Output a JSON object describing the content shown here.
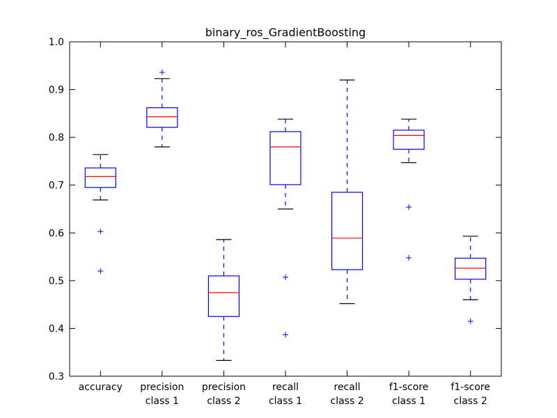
{
  "chart_data": {
    "type": "box",
    "title": "binary_ros_GradientBoosting",
    "xlabel": "",
    "ylabel": "",
    "ylim": [
      0.3,
      1.0
    ],
    "yticks": [
      "0.3",
      "0.4",
      "0.5",
      "0.6",
      "0.7",
      "0.8",
      "0.9",
      "1.0"
    ],
    "grid": false,
    "colors": {
      "box": "#0000ff",
      "median": "#ff0000",
      "whisker": "#0000ff",
      "cap": "#000000",
      "flier": "#0000ff"
    },
    "categories": [
      [
        "accuracy"
      ],
      [
        "precision",
        "class 1"
      ],
      [
        "precision",
        "class 2"
      ],
      [
        "recall",
        "class 1"
      ],
      [
        "recall",
        "class 2"
      ],
      [
        "f1-score",
        "class 1"
      ],
      [
        "f1-score",
        "class 2"
      ]
    ],
    "boxes": [
      {
        "whislo": 0.669,
        "q1": 0.695,
        "med": 0.718,
        "q3": 0.736,
        "whishi": 0.764,
        "fliers": [
          0.603,
          0.52
        ]
      },
      {
        "whislo": 0.78,
        "q1": 0.821,
        "med": 0.843,
        "q3": 0.862,
        "whishi": 0.923,
        "fliers": [
          0.936
        ]
      },
      {
        "whislo": 0.333,
        "q1": 0.425,
        "med": 0.475,
        "q3": 0.51,
        "whishi": 0.586,
        "fliers": []
      },
      {
        "whislo": 0.65,
        "q1": 0.701,
        "med": 0.78,
        "q3": 0.812,
        "whishi": 0.838,
        "fliers": [
          0.507,
          0.387
        ]
      },
      {
        "whislo": 0.452,
        "q1": 0.523,
        "med": 0.589,
        "q3": 0.685,
        "whishi": 0.92,
        "fliers": []
      },
      {
        "whislo": 0.747,
        "q1": 0.775,
        "med": 0.804,
        "q3": 0.815,
        "whishi": 0.838,
        "fliers": [
          0.654,
          0.548
        ]
      },
      {
        "whislo": 0.46,
        "q1": 0.503,
        "med": 0.526,
        "q3": 0.547,
        "whishi": 0.593,
        "fliers": [
          0.415
        ]
      }
    ]
  }
}
